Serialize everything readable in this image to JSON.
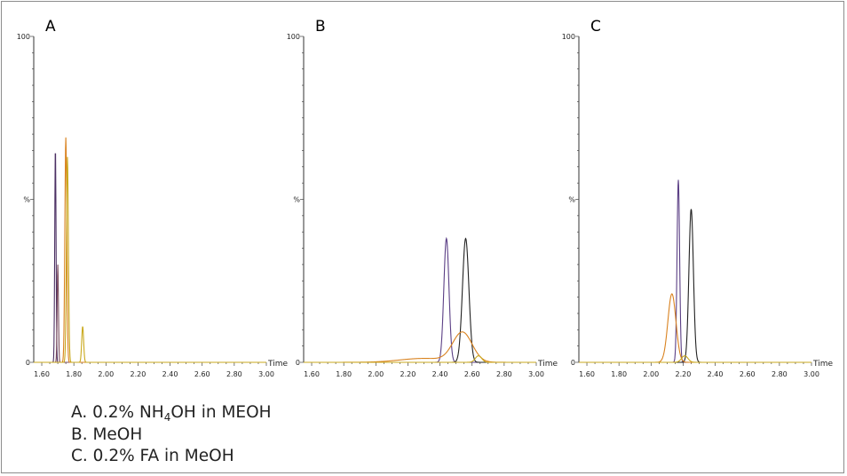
{
  "chart_data": [
    {
      "panel": "A",
      "type": "line",
      "xlabel": "Time",
      "ylabel": "%",
      "xlim": [
        1.55,
        3.0
      ],
      "ylim": [
        0,
        100
      ],
      "yticks": [
        "0",
        "%",
        "100"
      ],
      "xticks": [
        "1.60",
        "1.80",
        "2.00",
        "2.20",
        "2.40",
        "2.60",
        "2.80",
        "3.00"
      ],
      "series": [
        {
          "color": "#4b2f63",
          "peaks": [
            {
              "center": 1.685,
              "height": 66,
              "sigma": 0.004
            }
          ]
        },
        {
          "color": "#7a4b5e",
          "peaks": [
            {
              "center": 1.7,
              "height": 30,
              "sigma": 0.004
            }
          ]
        },
        {
          "color": "#d9821f",
          "peaks": [
            {
              "center": 1.75,
              "height": 69,
              "sigma": 0.006
            }
          ]
        },
        {
          "color": "#c9a81c",
          "peaks": [
            {
              "center": 1.76,
              "height": 63,
              "sigma": 0.006
            },
            {
              "center": 1.855,
              "height": 11,
              "sigma": 0.006
            }
          ]
        }
      ]
    },
    {
      "panel": "B",
      "type": "line",
      "xlabel": "Time",
      "ylabel": "%",
      "xlim": [
        1.55,
        3.0
      ],
      "ylim": [
        0,
        100
      ],
      "yticks": [
        "0",
        "%",
        "100"
      ],
      "xticks": [
        "1.60",
        "1.80",
        "2.00",
        "2.20",
        "2.40",
        "2.60",
        "2.80",
        "3.00"
      ],
      "series": [
        {
          "color": "#5b3f85",
          "peaks": [
            {
              "center": 2.44,
              "height": 38,
              "sigma": 0.016
            }
          ]
        },
        {
          "color": "#222222",
          "peaks": [
            {
              "center": 2.56,
              "height": 38,
              "sigma": 0.02
            }
          ]
        },
        {
          "color": "#d9821f",
          "peaks": [
            {
              "center": 2.54,
              "height": 9,
              "sigma": 0.06
            },
            {
              "center": 2.3,
              "height": 1.2,
              "sigma": 0.15
            }
          ]
        },
        {
          "color": "#c9a81c",
          "peaks": [
            {
              "center": 2.64,
              "height": 2,
              "sigma": 0.02
            }
          ]
        }
      ]
    },
    {
      "panel": "C",
      "type": "line",
      "xlabel": "Time",
      "ylabel": "%",
      "xlim": [
        1.55,
        3.0
      ],
      "ylim": [
        0,
        100
      ],
      "yticks": [
        "0",
        "%",
        "100"
      ],
      "xticks": [
        "1.60",
        "1.80",
        "2.00",
        "2.20",
        "2.40",
        "2.60",
        "2.80",
        "3.00"
      ],
      "series": [
        {
          "color": "#5b3f85",
          "peaks": [
            {
              "center": 2.17,
              "height": 56,
              "sigma": 0.008
            }
          ]
        },
        {
          "color": "#222222",
          "peaks": [
            {
              "center": 2.25,
              "height": 47,
              "sigma": 0.014
            }
          ]
        },
        {
          "color": "#d9821f",
          "peaks": [
            {
              "center": 2.13,
              "height": 21,
              "sigma": 0.025
            }
          ]
        },
        {
          "color": "#c9a81c",
          "peaks": [
            {
              "center": 2.21,
              "height": 2,
              "sigma": 0.02
            }
          ]
        }
      ]
    }
  ],
  "legend": {
    "line_a": "A. 0.2% NH",
    "line_a_sub": "4",
    "line_a_tail": "OH in MEOH",
    "line_b": "B. MeOH",
    "line_c": "C. 0.2% FA in MeOH"
  }
}
